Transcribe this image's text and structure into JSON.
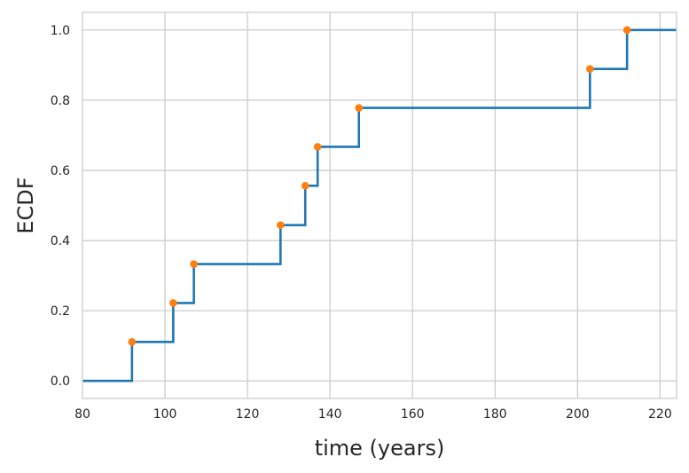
{
  "chart_data": {
    "type": "line",
    "subtype": "ecdf-step",
    "xlabel": "time (years)",
    "ylabel": "ECDF",
    "xlim": [
      80,
      224
    ],
    "ylim": [
      -0.05,
      1.05
    ],
    "xticks": [
      80,
      100,
      120,
      140,
      160,
      180,
      200,
      220
    ],
    "yticks": [
      0.0,
      0.2,
      0.4,
      0.6,
      0.8,
      1.0
    ],
    "xtick_labels": [
      "80",
      "100",
      "120",
      "140",
      "160",
      "180",
      "200",
      "220"
    ],
    "ytick_labels": [
      "0.0",
      "0.2",
      "0.4",
      "0.6",
      "0.8",
      "1.0"
    ],
    "grid": true,
    "series": [
      {
        "kind": "step",
        "color": "#1f77b4",
        "x": [
          80,
          92,
          102,
          107,
          128,
          134,
          137,
          147,
          203,
          212,
          224
        ],
        "y": [
          0.0,
          0.111,
          0.222,
          0.333,
          0.444,
          0.556,
          0.667,
          0.778,
          0.889,
          1.0,
          1.0
        ]
      },
      {
        "kind": "points",
        "color": "#ff7f0e",
        "x": [
          92,
          102,
          107,
          128,
          134,
          137,
          147,
          203,
          212
        ],
        "y": [
          0.111,
          0.222,
          0.333,
          0.444,
          0.556,
          0.667,
          0.778,
          0.889,
          1.0
        ]
      }
    ]
  }
}
